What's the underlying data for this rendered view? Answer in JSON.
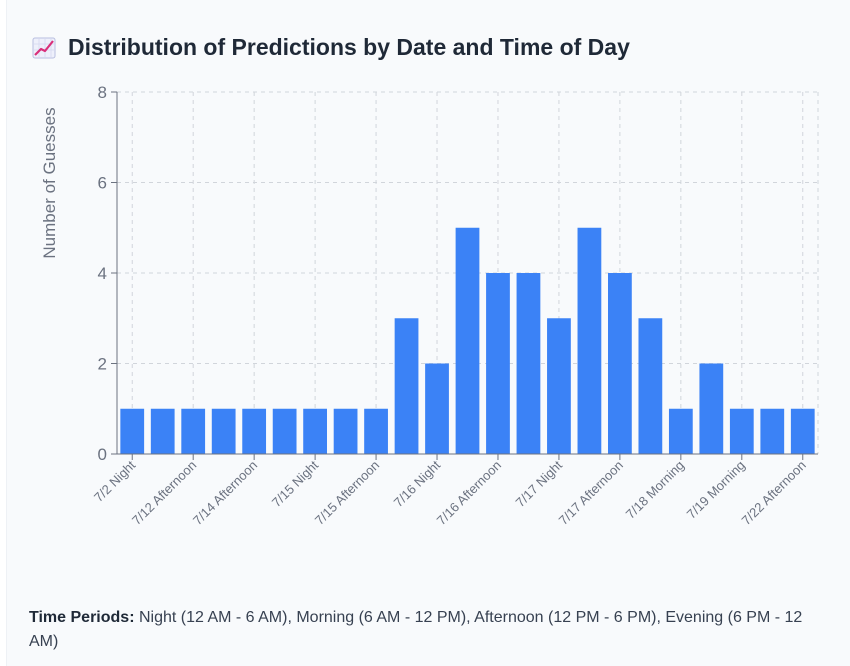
{
  "header": {
    "icon": "chart-increasing-icon",
    "title": "Distribution of Predictions by Date and Time of Day"
  },
  "chart_data": {
    "type": "bar",
    "categories": [
      "7/2 Night",
      "",
      "7/12 Afternoon",
      "",
      "7/14 Afternoon",
      "",
      "7/15 Night",
      "",
      "7/15 Afternoon",
      "",
      "7/16 Night",
      "",
      "7/16 Afternoon",
      "",
      "7/17 Night",
      "",
      "7/17 Afternoon",
      "",
      "7/18 Morning",
      "",
      "7/19 Morning",
      "",
      "7/22 Afternoon"
    ],
    "values": [
      1,
      1,
      1,
      1,
      1,
      1,
      1,
      1,
      1,
      3,
      2,
      5,
      4,
      4,
      3,
      5,
      4,
      3,
      1,
      2,
      1,
      1,
      1
    ],
    "x_tick_labels": [
      "7/2 Night",
      "7/12 Afternoon",
      "7/14 Afternoon",
      "7/15 Night",
      "7/15 Afternoon",
      "7/16 Night",
      "7/16 Afternoon",
      "7/17 Night",
      "7/17 Afternoon",
      "7/18 Morning",
      "7/19 Morning",
      "7/22 Afternoon"
    ],
    "y_ticks": [
      "0",
      "2",
      "4",
      "6",
      "8"
    ],
    "ylim": [
      0,
      8
    ],
    "ylabel": "Number of Guesses",
    "xlabel": "",
    "grid": true,
    "bar_color": "#3b82f6"
  },
  "footer": {
    "label": "Time Periods:",
    "text": " Night (12 AM - 6 AM), Morning (6 AM - 12 PM), Afternoon (12 PM - 6 PM), Evening (6 PM - 12 AM)"
  }
}
